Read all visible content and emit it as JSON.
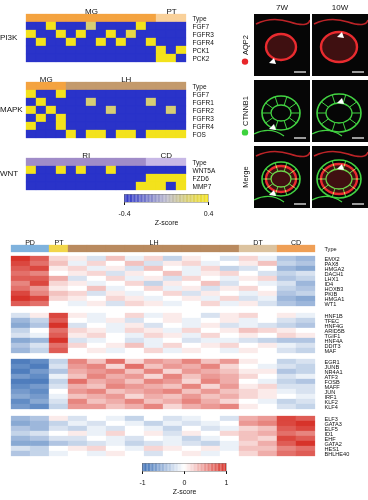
{
  "chart_data": [
    {
      "type": "heatmap",
      "title": "PI3K",
      "type_label": "Type",
      "segments": [
        {
          "name": "MG",
          "color": "#f4a340",
          "columns": 13
        },
        {
          "name": "PT",
          "color": "#f9d19a",
          "columns": 3
        }
      ],
      "genes": [
        "FGF7",
        "FGFR3",
        "FGFR4",
        "PCK1",
        "PCK2"
      ],
      "cells": [
        [
          -0.4,
          -0.4,
          0.4,
          -0.4,
          -0.4,
          -0.4,
          0.2,
          -0.4,
          -0.4,
          -0.4,
          -0.4,
          0.4,
          -0.4,
          -0.4,
          -0.4,
          -0.4
        ],
        [
          0.4,
          -0.4,
          -0.4,
          0.4,
          -0.4,
          0.4,
          -0.4,
          -0.4,
          0.4,
          -0.4,
          0.3,
          -0.4,
          -0.4,
          -0.4,
          -0.4,
          -0.4
        ],
        [
          -0.4,
          0.4,
          -0.4,
          -0.4,
          0.4,
          -0.4,
          -0.4,
          0.4,
          -0.4,
          0.4,
          -0.4,
          -0.4,
          0.4,
          -0.4,
          -0.4,
          -0.4
        ],
        [
          -0.4,
          -0.4,
          -0.4,
          -0.4,
          -0.4,
          -0.4,
          -0.4,
          -0.4,
          -0.4,
          -0.4,
          -0.4,
          -0.4,
          -0.4,
          0.4,
          -0.4,
          0.4
        ],
        [
          -0.4,
          -0.4,
          -0.4,
          -0.4,
          -0.4,
          -0.4,
          -0.4,
          -0.4,
          -0.4,
          -0.4,
          -0.4,
          -0.4,
          -0.4,
          0.4,
          0.4,
          -0.4
        ]
      ]
    },
    {
      "type": "heatmap",
      "title": "MAPK",
      "type_label": "Type",
      "segments": [
        {
          "name": "MG",
          "color": "#f4a340",
          "columns": 4
        },
        {
          "name": "LH",
          "color": "#c49a6c",
          "columns": 12
        }
      ],
      "genes": [
        "FGF7",
        "FGFR1",
        "FGFR2",
        "FGFR3",
        "FGFR4",
        "FOS"
      ],
      "cells": [
        [
          0.4,
          -0.4,
          -0.4,
          0.4,
          -0.4,
          -0.4,
          -0.4,
          -0.4,
          -0.4,
          -0.4,
          -0.4,
          -0.4,
          -0.4,
          -0.4,
          -0.4,
          -0.4
        ],
        [
          -0.4,
          0.4,
          -0.4,
          -0.4,
          -0.4,
          -0.4,
          0.2,
          -0.4,
          -0.4,
          -0.4,
          -0.4,
          -0.4,
          0.2,
          -0.4,
          -0.4,
          -0.4
        ],
        [
          0.4,
          -0.4,
          0.4,
          -0.4,
          -0.4,
          -0.4,
          -0.4,
          -0.4,
          0.2,
          -0.4,
          -0.4,
          -0.4,
          -0.4,
          -0.4,
          0.2,
          -0.4
        ],
        [
          -0.4,
          0.4,
          -0.4,
          0.4,
          -0.4,
          -0.4,
          -0.4,
          -0.4,
          -0.4,
          -0.4,
          -0.4,
          -0.4,
          -0.4,
          -0.4,
          -0.4,
          -0.4
        ],
        [
          0.4,
          -0.4,
          -0.4,
          0.4,
          -0.4,
          -0.4,
          -0.4,
          -0.4,
          -0.4,
          -0.4,
          -0.4,
          -0.4,
          -0.4,
          -0.4,
          -0.4,
          -0.4
        ],
        [
          -0.4,
          -0.4,
          -0.4,
          -0.4,
          0.4,
          -0.4,
          0.4,
          0.4,
          -0.4,
          0.4,
          0.4,
          -0.4,
          0.4,
          0.4,
          0.4,
          0.4
        ]
      ]
    },
    {
      "type": "heatmap",
      "title": "WNT",
      "type_label": "Type",
      "segments": [
        {
          "name": "RI",
          "color": "#a08cc8",
          "columns": 12
        },
        {
          "name": "CD",
          "color": "#c7b8e6",
          "columns": 4
        }
      ],
      "genes": [
        "WNT5A",
        "FZD6",
        "MMP7"
      ],
      "cells": [
        [
          0.4,
          -0.4,
          -0.4,
          0.4,
          -0.4,
          0.4,
          -0.4,
          -0.4,
          0.4,
          -0.4,
          -0.4,
          -0.4,
          -0.4,
          -0.4,
          -0.4,
          -0.4
        ],
        [
          -0.4,
          -0.4,
          -0.4,
          -0.4,
          -0.4,
          -0.4,
          -0.4,
          -0.4,
          -0.4,
          -0.4,
          -0.4,
          -0.4,
          0.4,
          0.4,
          0.4,
          0.4
        ],
        [
          -0.4,
          -0.4,
          -0.4,
          -0.4,
          -0.4,
          -0.4,
          -0.4,
          -0.4,
          -0.4,
          -0.4,
          -0.4,
          0.4,
          0.4,
          0.4,
          -0.4,
          0.4
        ]
      ]
    },
    {
      "type": "colorbar",
      "label": "Z-score",
      "range": [
        -0.4,
        0.4
      ],
      "ticks": [
        -0.4,
        0.4
      ],
      "colors": [
        "#2a33c9",
        "#b9b8cc",
        "#f3e21c"
      ]
    },
    {
      "type": "heatmap",
      "type_label": "Type",
      "segments": [
        {
          "name": "PD",
          "color": "#7fb2dd",
          "columns": 2
        },
        {
          "name": "PT",
          "color": "#f2d64b",
          "columns": 1
        },
        {
          "name": "LH",
          "color": "#b98a5f",
          "columns": 9
        },
        {
          "name": "DT",
          "color": "#dcc39f",
          "columns": 2
        },
        {
          "name": "CD",
          "color": "#ef9f56",
          "columns": 2
        }
      ],
      "row_groups": [
        {
          "genes": [
            "EMX2",
            "PAX8",
            "HMGA2",
            "DACH1",
            "LHX1",
            "ID4",
            "HOXB3",
            "PKIB",
            "HMGA1",
            "WT1"
          ],
          "cells": [
            [
              1,
              0.8,
              0.2,
              0.1,
              -0.2,
              0.3,
              -0.1,
              0.2,
              -0.3,
              0.1,
              0,
              -0.2,
              0.2,
              -0.1,
              -0.4,
              -0.5
            ],
            [
              0.9,
              0.7,
              0.3,
              -0.1,
              0.2,
              0,
              0.3,
              -0.2,
              0.1,
              0.2,
              -0.1,
              0,
              0.1,
              0.3,
              -0.3,
              -0.4
            ],
            [
              0.8,
              0.9,
              0.1,
              0.2,
              -0.1,
              0.1,
              -0.2,
              0.3,
              0,
              -0.1,
              0.2,
              -0.3,
              -0.2,
              0,
              -0.5,
              -0.6
            ],
            [
              0.7,
              0.6,
              0,
              0.1,
              0.2,
              -0.2,
              0.1,
              0,
              0.3,
              -0.1,
              0.1,
              0.2,
              0,
              -0.2,
              -0.3,
              -0.2
            ],
            [
              0.8,
              0.8,
              0.4,
              -0.2,
              0,
              0.2,
              -0.1,
              0.1,
              -0.2,
              0.2,
              0,
              -0.1,
              0.1,
              0.2,
              -0.4,
              -0.3
            ],
            [
              0.6,
              0.9,
              0.2,
              0.1,
              -0.1,
              0,
              0.2,
              -0.3,
              0.1,
              0,
              0.3,
              -0.2,
              0,
              -0.1,
              -0.2,
              -0.5
            ],
            [
              0.7,
              0.5,
              0.1,
              0,
              0.3,
              -0.1,
              0,
              0.2,
              -0.1,
              0.1,
              -0.2,
              0.1,
              0.2,
              0,
              -0.3,
              -0.4
            ],
            [
              0.9,
              0.6,
              0.3,
              0.2,
              -0.2,
              0.1,
              -0.1,
              0,
              0.2,
              -0.2,
              0.1,
              0,
              -0.1,
              0.1,
              -0.4,
              -0.3
            ],
            [
              1,
              0.9,
              0.2,
              0.1,
              0,
              0.2,
              0.1,
              -0.1,
              0,
              0.1,
              -0.1,
              0.2,
              -0.2,
              -0.1,
              -0.5,
              -0.6
            ],
            [
              0.8,
              0.7,
              0,
              -0.1,
              0.1,
              -0.2,
              0.2,
              0.1,
              -0.1,
              0,
              0.2,
              -0.1,
              0.1,
              -0.2,
              -0.4,
              -0.5
            ]
          ]
        },
        {
          "genes": [
            "HNF1B",
            "TFEC",
            "HNF4G",
            "ARID5B",
            "TGIF1",
            "HNF4A",
            "DDIT3",
            "MAF"
          ],
          "cells": [
            [
              -0.2,
              0.1,
              0.9,
              0.1,
              -0.1,
              0,
              0.2,
              -0.1,
              0.1,
              0,
              -0.2,
              0.1,
              0.2,
              0,
              0.1,
              -0.1
            ],
            [
              -0.5,
              -0.3,
              0.8,
              0,
              -0.1,
              0.1,
              -0.2,
              0,
              0.1,
              -0.1,
              0,
              0.1,
              -0.1,
              0,
              -0.2,
              -0.3
            ],
            [
              -0.6,
              -0.4,
              1,
              -0.2,
              0,
              -0.1,
              0.1,
              -0.2,
              0,
              -0.1,
              0.1,
              -0.2,
              -0.1,
              -0.2,
              -0.3,
              -0.4
            ],
            [
              -0.3,
              0,
              0.7,
              0.2,
              0.1,
              -0.1,
              0.2,
              0.1,
              -0.1,
              0.2,
              0,
              0.1,
              0.3,
              0.2,
              0.1,
              0
            ],
            [
              -0.2,
              -0.1,
              0.8,
              0.1,
              0.2,
              0,
              -0.1,
              0.2,
              0.1,
              -0.1,
              0.2,
              0,
              0.1,
              0,
              0.2,
              0.1
            ],
            [
              -0.6,
              -0.5,
              1,
              -0.2,
              -0.1,
              0,
              -0.2,
              -0.1,
              0,
              -0.2,
              -0.1,
              -0.1,
              -0.2,
              -0.3,
              -0.4,
              -0.4
            ],
            [
              -0.4,
              -0.2,
              0.7,
              0.2,
              0,
              0.1,
              0.3,
              -0.1,
              0.2,
              0,
              0.1,
              0.2,
              0,
              0.1,
              -0.1,
              -0.2
            ],
            [
              -0.5,
              -0.3,
              0.8,
              0,
              0.1,
              -0.1,
              0,
              0.2,
              -0.1,
              0.1,
              0,
              -0.1,
              0.1,
              0,
              -0.2,
              -0.3
            ]
          ]
        },
        {
          "genes": [
            "EGR1",
            "JUNB",
            "NR4A1",
            "ATF3",
            "FOSB",
            "MAFF",
            "JUN",
            "IRF1",
            "KLF2",
            "KLF4"
          ],
          "cells": [
            [
              -0.9,
              -0.8,
              -0.3,
              0.6,
              0.3,
              0.7,
              0.2,
              0.5,
              0.4,
              0.6,
              0.3,
              0.5,
              0.1,
              0,
              -0.3,
              -0.2
            ],
            [
              -0.8,
              -0.9,
              -0.2,
              0.5,
              0.6,
              0.2,
              0.7,
              0.3,
              0.5,
              0.4,
              0.6,
              0.2,
              0,
              -0.1,
              -0.2,
              -0.3
            ],
            [
              -0.9,
              -0.7,
              -0.4,
              0.4,
              0.5,
              0.6,
              0.3,
              0.6,
              0.2,
              0.5,
              0.4,
              0.3,
              0.1,
              0.1,
              -0.4,
              -0.3
            ],
            [
              -0.7,
              -0.8,
              -0.1,
              0.3,
              0.6,
              0.4,
              0.5,
              0.2,
              0.6,
              0.3,
              0.5,
              0.4,
              0.2,
              0,
              -0.2,
              -0.1
            ],
            [
              -0.9,
              -0.9,
              -0.3,
              0.7,
              0.4,
              0.5,
              0.3,
              0.6,
              0.5,
              0.2,
              0.6,
              0.4,
              0,
              -0.1,
              -0.3,
              -0.4
            ],
            [
              -0.8,
              -0.7,
              -0.2,
              0.4,
              0.3,
              0.6,
              0.5,
              0.4,
              0.3,
              0.6,
              0.2,
              0.5,
              0.1,
              0.2,
              -0.2,
              -0.2
            ],
            [
              -0.7,
              -0.8,
              0,
              0.5,
              0.6,
              0.3,
              0.4,
              0.5,
              0.6,
              0.3,
              0.5,
              0.3,
              0.2,
              0.1,
              -0.1,
              -0.2
            ],
            [
              -0.6,
              -0.7,
              -0.1,
              0.3,
              0.4,
              0.5,
              0.2,
              0.4,
              0.3,
              0.5,
              0.3,
              0.4,
              0.2,
              0.1,
              0,
              -0.1
            ],
            [
              -0.8,
              -0.6,
              -0.2,
              0.6,
              0.3,
              0.4,
              0.6,
              0.3,
              0.4,
              0.6,
              0.4,
              0.2,
              0,
              -0.1,
              -0.3,
              -0.2
            ],
            [
              -0.7,
              -0.8,
              -0.3,
              0.5,
              0.5,
              0.3,
              0.4,
              0.6,
              0.2,
              0.4,
              0.5,
              0.6,
              0.1,
              0,
              -0.2,
              -0.3
            ]
          ]
        },
        {
          "genes": [
            "ELF3",
            "GATA3",
            "ELF5",
            "ID1",
            "EHF",
            "GATA2",
            "HES1",
            "BHLHE40"
          ],
          "cells": [
            [
              -0.5,
              -0.4,
              0.1,
              -0.2,
              0,
              -0.1,
              -0.3,
              0,
              -0.2,
              -0.1,
              0,
              -0.2,
              0.4,
              0.5,
              0.9,
              0.8
            ],
            [
              -0.6,
              -0.5,
              -0.3,
              -0.1,
              -0.2,
              0,
              -0.1,
              -0.3,
              -0.1,
              -0.2,
              -0.1,
              0,
              0.5,
              0.6,
              0.9,
              1
            ],
            [
              -0.4,
              -0.5,
              -0.2,
              -0.3,
              -0.1,
              -0.2,
              0,
              -0.1,
              -0.3,
              0,
              -0.2,
              -0.1,
              0.2,
              0.3,
              0.8,
              0.9
            ],
            [
              -0.3,
              -0.2,
              0,
              0.1,
              -0.1,
              0.2,
              0,
              0.1,
              -0.2,
              0.1,
              0,
              0.2,
              0.3,
              0.4,
              0.7,
              0.6
            ],
            [
              -0.5,
              -0.4,
              -0.2,
              -0.2,
              0,
              -0.1,
              -0.2,
              0,
              -0.1,
              -0.3,
              -0.1,
              0,
              0.3,
              0.2,
              0.9,
              0.8
            ],
            [
              -0.6,
              -0.6,
              -0.4,
              -0.3,
              -0.2,
              -0.1,
              -0.3,
              -0.2,
              -0.1,
              -0.2,
              -0.3,
              -0.1,
              0.2,
              0.4,
              0.8,
              1
            ],
            [
              -0.2,
              -0.3,
              0,
              0.1,
              0.2,
              0,
              -0.1,
              0.2,
              0.1,
              0,
              0.1,
              -0.1,
              0.3,
              0.3,
              0.6,
              0.7
            ],
            [
              -0.4,
              -0.3,
              -0.1,
              0,
              -0.1,
              0.1,
              0,
              -0.2,
              0,
              0.1,
              -0.1,
              0,
              0.2,
              0.4,
              0.7,
              0.8
            ]
          ]
        }
      ]
    },
    {
      "type": "colorbar",
      "label": "Z-score",
      "range": [
        -1,
        1
      ],
      "ticks": [
        -1,
        0,
        1
      ],
      "colors": [
        "#3b6fb6",
        "#ffffff",
        "#d7332a"
      ]
    }
  ],
  "images": {
    "columns": [
      "7W",
      "10W"
    ],
    "rows": [
      {
        "label": "AQP2",
        "color": "#e8262a"
      },
      {
        "label": "CTNNB1",
        "color": "#3dd23d"
      },
      {
        "label": "Merge"
      }
    ]
  }
}
